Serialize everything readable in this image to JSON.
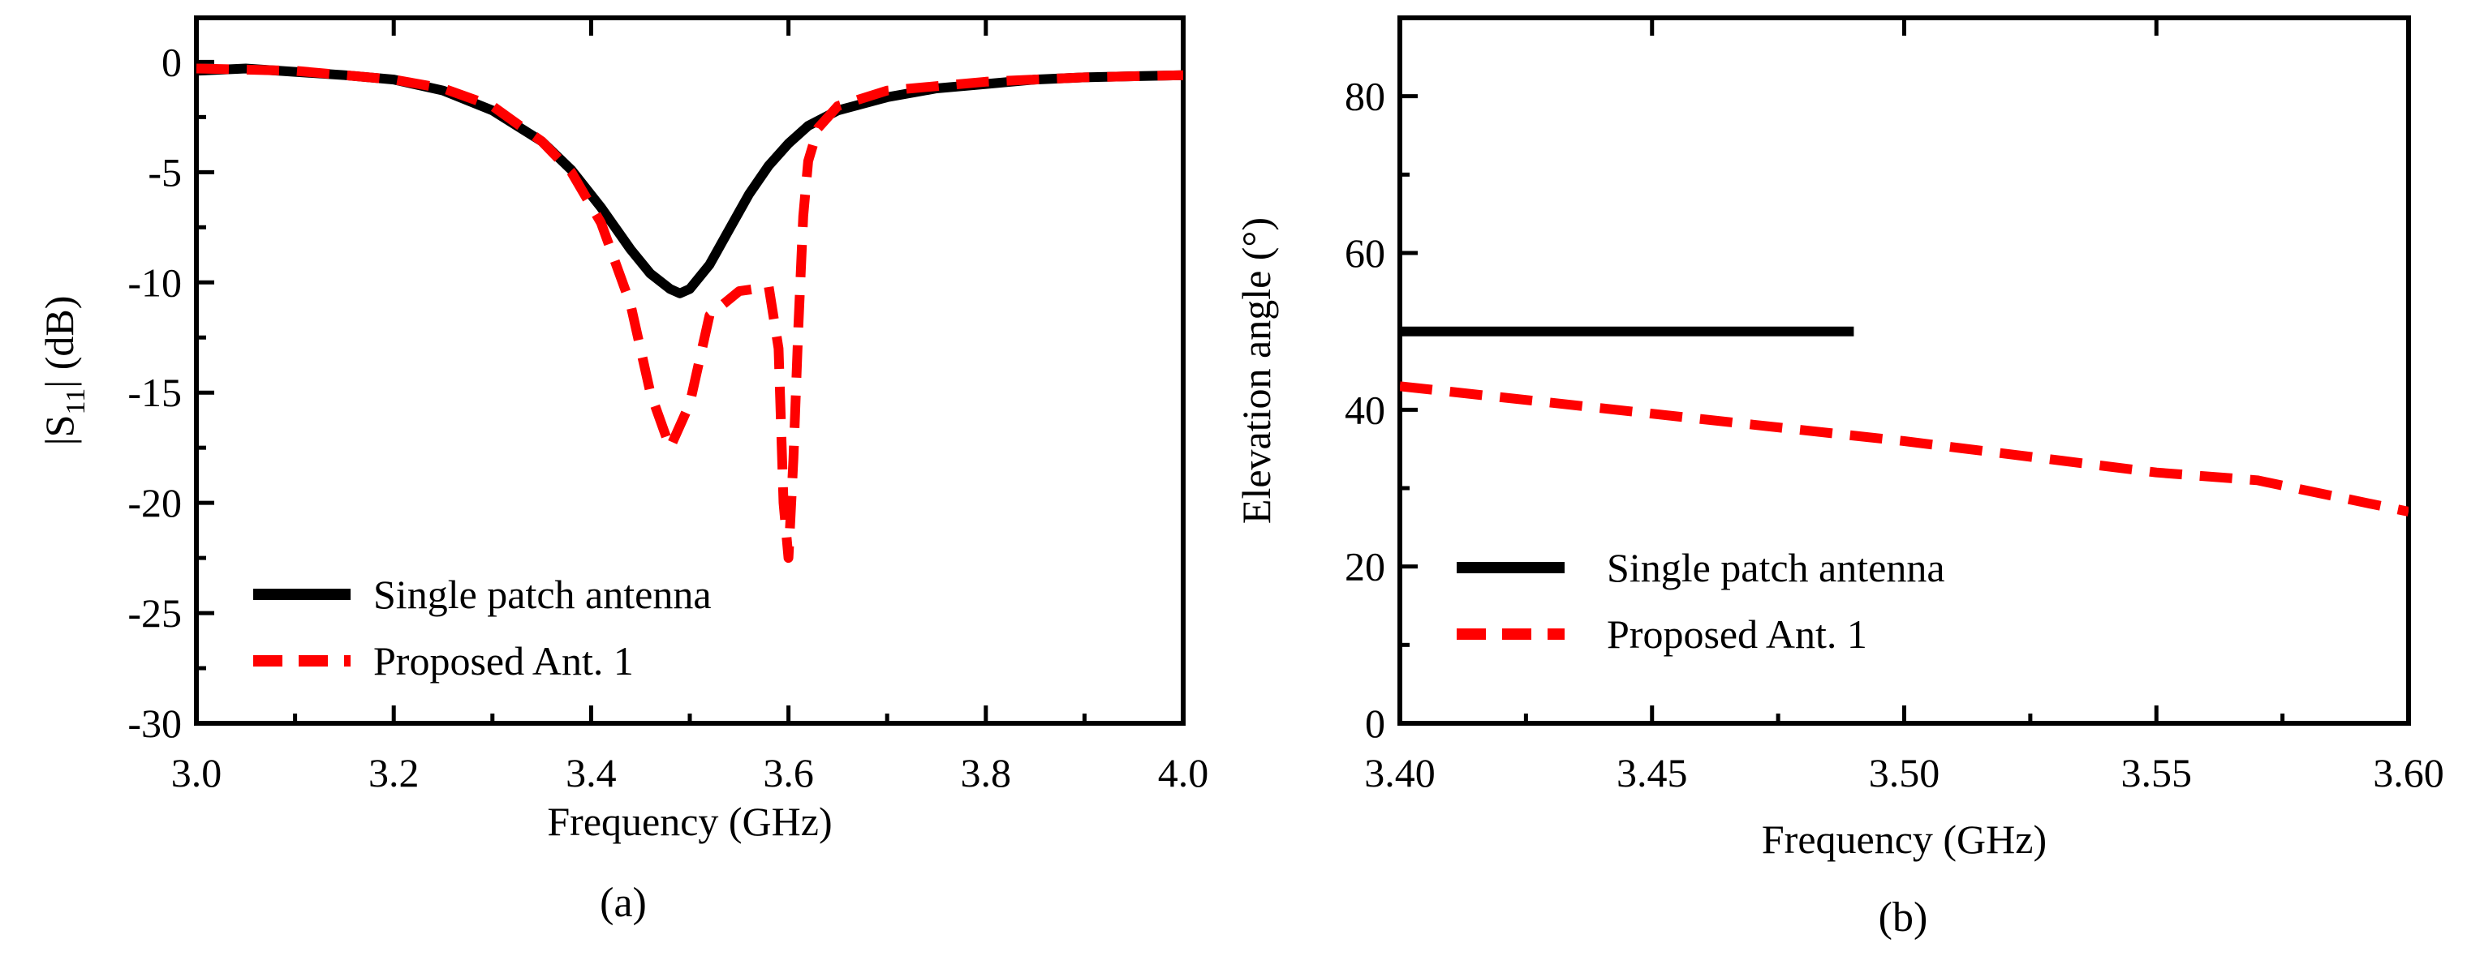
{
  "chart_data": [
    {
      "type": "line",
      "panel_label": "(a)",
      "xlabel": "Frequency (GHz)",
      "ylabel_main": "|S",
      "ylabel_sub": "11",
      "ylabel_tail": "| (dB)",
      "xlim": [
        3.0,
        4.0
      ],
      "ylim": [
        -30,
        2
      ],
      "xticks": [
        3.0,
        3.2,
        3.4,
        3.6,
        3.8,
        4.0
      ],
      "xtick_labels": [
        "3.0",
        "3.2",
        "3.4",
        "3.6",
        "3.8",
        "4.0"
      ],
      "yticks": [
        0,
        -5,
        -10,
        -15,
        -20,
        -25,
        -30
      ],
      "ytick_labels": [
        "0",
        "-5",
        "-10",
        "-15",
        "-20",
        "-25",
        "-30"
      ],
      "legend_position": "bottom-left",
      "series": [
        {
          "name": "Single patch antenna",
          "color": "#000000",
          "dash": "solid",
          "x": [
            3.0,
            3.05,
            3.1,
            3.15,
            3.2,
            3.25,
            3.3,
            3.35,
            3.38,
            3.41,
            3.44,
            3.46,
            3.48,
            3.49,
            3.5,
            3.52,
            3.54,
            3.56,
            3.58,
            3.6,
            3.62,
            3.65,
            3.7,
            3.75,
            3.8,
            3.85,
            3.9,
            3.95,
            4.0
          ],
          "y": [
            -0.4,
            -0.3,
            -0.45,
            -0.6,
            -0.8,
            -1.3,
            -2.2,
            -3.6,
            -4.9,
            -6.6,
            -8.5,
            -9.6,
            -10.3,
            -10.5,
            -10.3,
            -9.2,
            -7.6,
            -6.0,
            -4.7,
            -3.7,
            -2.9,
            -2.2,
            -1.6,
            -1.2,
            -1.0,
            -0.8,
            -0.7,
            -0.65,
            -0.6
          ]
        },
        {
          "name": "Proposed Ant. 1",
          "color": "#ff0000",
          "dash": "dashed",
          "x": [
            3.0,
            3.1,
            3.2,
            3.25,
            3.3,
            3.35,
            3.38,
            3.41,
            3.44,
            3.46,
            3.48,
            3.5,
            3.52,
            3.55,
            3.58,
            3.59,
            3.595,
            3.6,
            3.605,
            3.61,
            3.615,
            3.62,
            3.63,
            3.65,
            3.7,
            3.8,
            3.9,
            4.0
          ],
          "y": [
            -0.3,
            -0.4,
            -0.8,
            -1.2,
            -2.0,
            -3.6,
            -5.0,
            -7.3,
            -11.0,
            -15.0,
            -17.5,
            -15.5,
            -11.5,
            -10.4,
            -10.2,
            -13.0,
            -20.0,
            -22.5,
            -18.0,
            -12.0,
            -7.0,
            -4.5,
            -3.0,
            -2.0,
            -1.3,
            -0.9,
            -0.7,
            -0.6
          ]
        }
      ]
    },
    {
      "type": "line",
      "panel_label": "(b)",
      "xlabel": "Frequency (GHz)",
      "ylabel": "Elevation angle (°)",
      "xlim": [
        3.4,
        3.6
      ],
      "ylim": [
        0,
        90
      ],
      "xticks": [
        3.4,
        3.45,
        3.5,
        3.55,
        3.6
      ],
      "xtick_labels": [
        "3.40",
        "3.45",
        "3.50",
        "3.55",
        "3.60"
      ],
      "yticks": [
        0,
        20,
        40,
        60,
        80
      ],
      "ytick_labels": [
        "0",
        "20",
        "40",
        "60",
        "80"
      ],
      "legend_position": "bottom-left",
      "series": [
        {
          "name": "Single patch antenna",
          "color": "#000000",
          "dash": "solid",
          "x": [
            3.4,
            3.49
          ],
          "y": [
            50,
            50
          ]
        },
        {
          "name": "Proposed Ant. 1",
          "color": "#ff0000",
          "dash": "dashed",
          "x": [
            3.4,
            3.45,
            3.5,
            3.55,
            3.57,
            3.6
          ],
          "y": [
            43,
            39.5,
            36,
            32,
            31,
            27
          ]
        }
      ]
    }
  ]
}
